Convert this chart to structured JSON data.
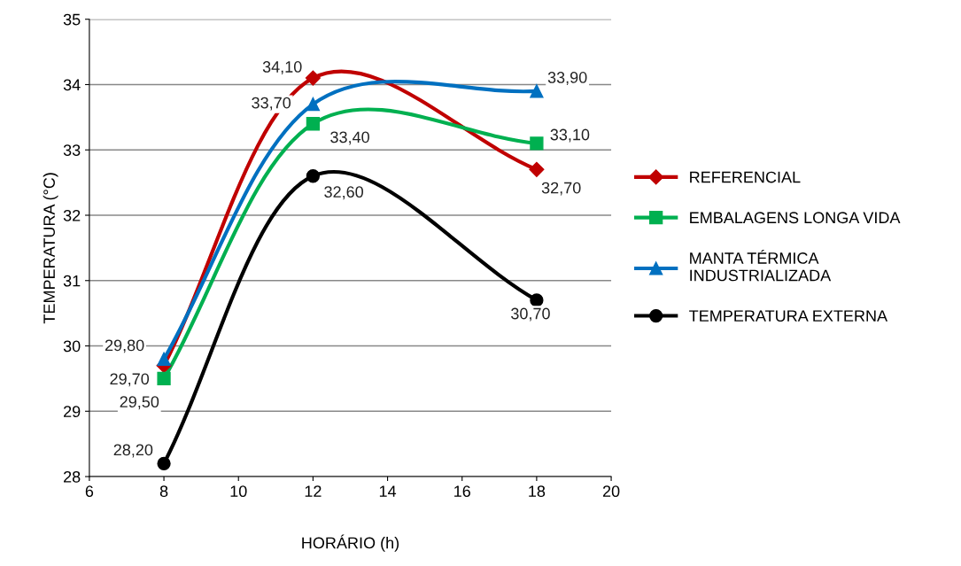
{
  "chart_data": {
    "type": "line",
    "xlabel": "HORÁRIO (h)",
    "ylabel": "TEMPERATURA (°C)",
    "xlim": [
      6,
      20
    ],
    "xticks": [
      6,
      8,
      10,
      12,
      14,
      16,
      18,
      20
    ],
    "ylim": [
      28,
      35
    ],
    "yticks": [
      28,
      29,
      30,
      31,
      32,
      33,
      34,
      35
    ],
    "grid": "y",
    "legend": "right",
    "x": [
      8,
      12,
      18
    ],
    "series": [
      {
        "name": "REFERENCIAL",
        "color": "#c00000",
        "marker": "diamond",
        "values": [
          29.7,
          34.1,
          32.7
        ],
        "value_labels": [
          "29,70",
          "34,10",
          "32,70"
        ]
      },
      {
        "name": "EMBALAGENS LONGA VIDA",
        "color": "#00b050",
        "marker": "square",
        "values": [
          29.5,
          33.4,
          33.1
        ],
        "value_labels": [
          "29,50",
          "33,40",
          "33,10"
        ]
      },
      {
        "name": "MANTA TÉRMICA\nINDUSTRIALIZADA",
        "color": "#0070c0",
        "marker": "triangle",
        "values": [
          29.8,
          33.7,
          33.9
        ],
        "value_labels": [
          "29,80",
          "33,70",
          "33,90"
        ]
      },
      {
        "name": "TEMPERATURA EXTERNA",
        "color": "#000000",
        "marker": "circle",
        "values": [
          28.2,
          32.6,
          30.7
        ],
        "value_labels": [
          "28,20",
          "32,60",
          "30,70"
        ]
      }
    ]
  }
}
